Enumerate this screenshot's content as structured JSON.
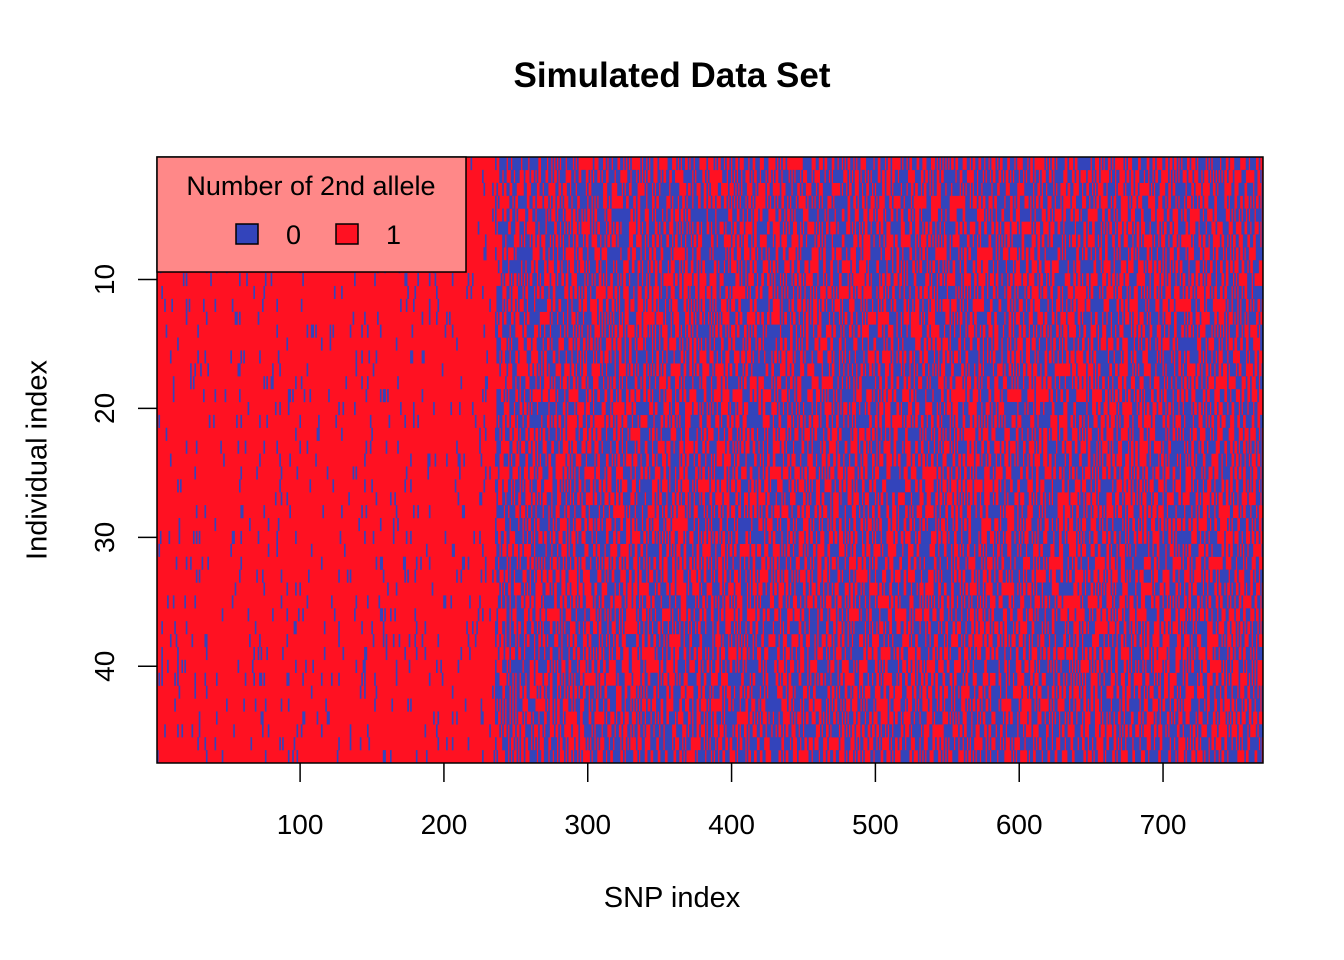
{
  "chart_data": {
    "type": "heatmap",
    "title": "Simulated Data Set",
    "xlabel": "SNP index",
    "ylabel": "Individual index",
    "xlim": [
      1,
      769
    ],
    "ylim": [
      1,
      47
    ],
    "y_axis_direction": "top-to-bottom",
    "x_ticks": [
      100,
      200,
      300,
      400,
      500,
      600,
      700
    ],
    "y_ticks": [
      10,
      20,
      30,
      40
    ],
    "n_snps": 769,
    "n_individuals": 47,
    "value_levels": [
      0,
      1
    ],
    "colors": {
      "0": "#3344bb",
      "1": "#ff1122"
    },
    "regions": [
      {
        "snp_from": 1,
        "snp_to": 235,
        "proportion_value_0": 0.06
      },
      {
        "snp_from": 236,
        "snp_to": 769,
        "proportion_value_0": 0.5
      }
    ],
    "legend": {
      "title": "Number of 2nd allele",
      "entries": [
        {
          "label": "0",
          "color": "#3344bb"
        },
        {
          "label": "1",
          "color": "#ff1122"
        }
      ],
      "position": "top-left",
      "background": "#ff8888"
    }
  }
}
